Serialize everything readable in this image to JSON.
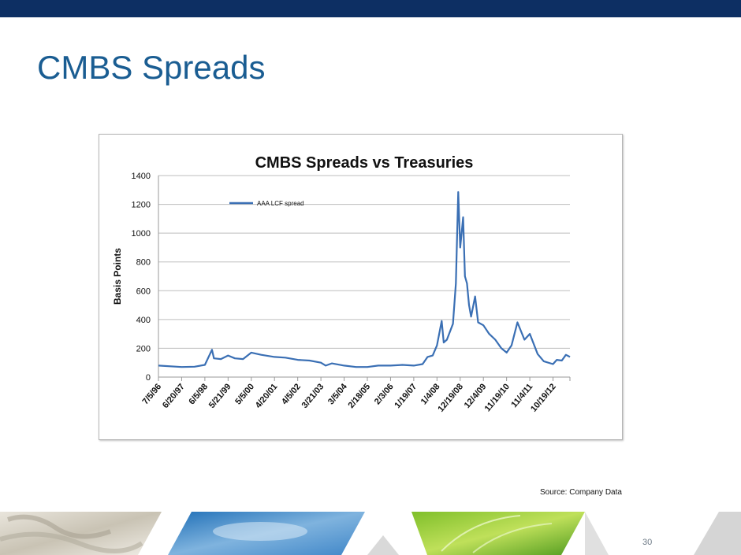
{
  "slide": {
    "title": "CMBS Spreads",
    "source": "Source: Company Data",
    "page_number": "30"
  },
  "colors": {
    "top_bar": "#0d2f63",
    "title": "#1a5d92",
    "series": "#3a6fb4"
  },
  "chart_data": {
    "type": "line",
    "title": "CMBS Spreads vs Treasuries",
    "ylabel": "Basis Points",
    "xlabel": "",
    "ylim": [
      0,
      1400
    ],
    "yticks": [
      0,
      200,
      400,
      600,
      800,
      1000,
      1200,
      1400
    ],
    "grid": true,
    "legend_position": "top-left",
    "x_tick_labels": [
      "7/5/96",
      "6/20/97",
      "6/5/98",
      "5/21/99",
      "5/5/00",
      "4/20/01",
      "4/5/02",
      "3/21/03",
      "3/5/04",
      "2/18/05",
      "2/3/06",
      "1/19/07",
      "1/4/08",
      "12/19/08",
      "12/4/09",
      "11/19/10",
      "11/4/11",
      "10/19/12"
    ],
    "series": [
      {
        "name": "AAA LCF spread",
        "x": [
          "7/5/96",
          "6/20/97",
          "1/1/98",
          "6/5/98",
          "9/20/98",
          "10/20/98",
          "2/1/99",
          "5/21/99",
          "9/1/99",
          "1/1/00",
          "5/5/00",
          "10/1/00",
          "4/20/01",
          "10/1/01",
          "4/5/02",
          "10/1/02",
          "3/21/03",
          "6/1/03",
          "9/1/03",
          "3/5/04",
          "9/1/04",
          "2/18/05",
          "8/1/05",
          "2/3/06",
          "8/1/06",
          "1/19/07",
          "6/1/07",
          "8/15/07",
          "11/1/07",
          "1/4/08",
          "3/15/08",
          "4/15/08",
          "6/1/08",
          "9/1/08",
          "10/15/08",
          "11/20/08",
          "12/19/08",
          "1/10/09",
          "2/1/09",
          "3/1/09",
          "4/1/09",
          "5/1/09",
          "6/1/09",
          "8/1/09",
          "9/15/09",
          "12/4/09",
          "3/1/10",
          "6/1/10",
          "9/1/10",
          "11/19/10",
          "2/1/11",
          "5/1/11",
          "8/15/11",
          "11/4/11",
          "3/1/12",
          "6/1/12",
          "10/19/12",
          "12/15/12",
          "3/1/13",
          "5/1/13",
          "7/1/13"
        ],
        "values": [
          80,
          70,
          72,
          85,
          190,
          130,
          125,
          150,
          130,
          125,
          170,
          155,
          140,
          135,
          120,
          115,
          100,
          80,
          95,
          80,
          70,
          70,
          80,
          80,
          85,
          80,
          90,
          140,
          150,
          220,
          390,
          240,
          260,
          370,
          650,
          1285,
          900,
          1000,
          1110,
          700,
          650,
          500,
          420,
          560,
          380,
          360,
          300,
          260,
          200,
          170,
          220,
          380,
          260,
          300,
          160,
          110,
          90,
          120,
          115,
          155,
          140
        ]
      }
    ]
  }
}
